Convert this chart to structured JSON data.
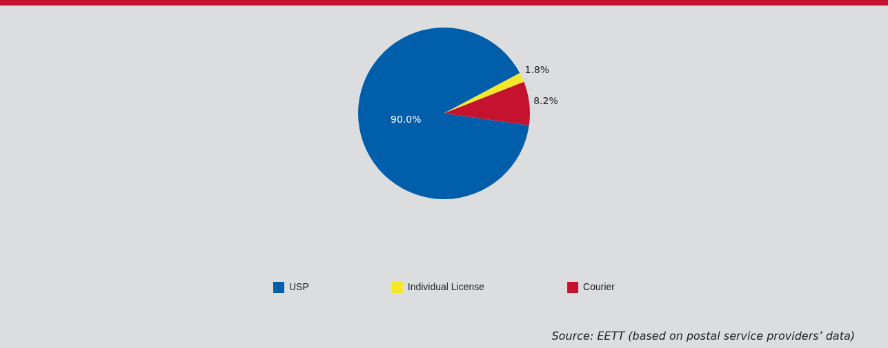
{
  "chart_data": {
    "type": "pie",
    "categories": [
      "USP",
      "Individual License",
      "Courier"
    ],
    "values": [
      90.0,
      1.8,
      8.2
    ],
    "value_labels": [
      "90.0%",
      "1.8%",
      "8.2%"
    ],
    "colors": [
      "#005eab",
      "#f5e72a",
      "#c4122f"
    ],
    "legend": "bottom",
    "annotations": [
      "Source: EETT (based on postal service providers’ data)"
    ]
  }
}
